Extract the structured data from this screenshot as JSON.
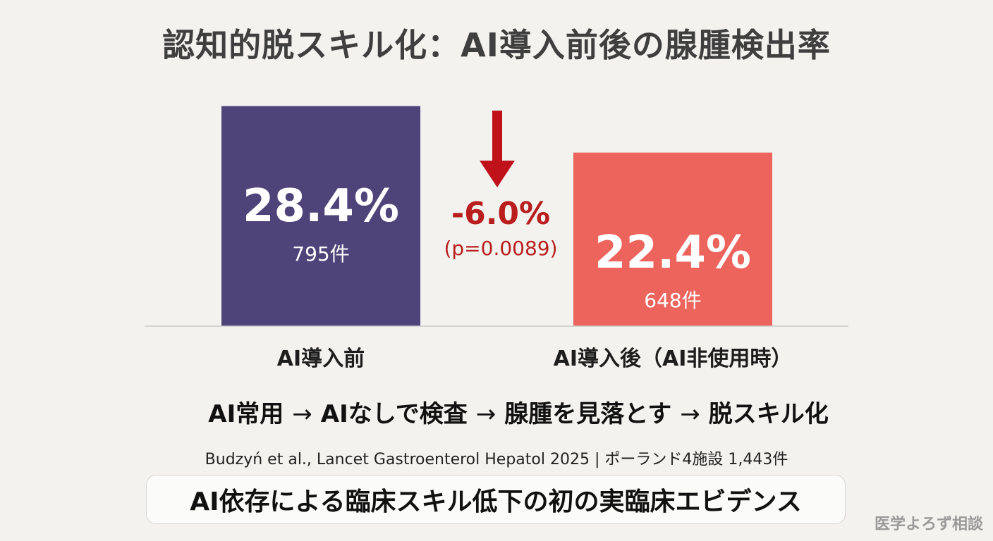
{
  "title": "認知的脱スキル化：AI導入前後の腺腫検出率",
  "chart_data": {
    "type": "bar",
    "categories": [
      "AI導入前",
      "AI導入後（AI非使用時）"
    ],
    "values": [
      28.4,
      22.4
    ],
    "value_labels": [
      "28.4%",
      "22.4%"
    ],
    "counts": [
      "795件",
      "648件"
    ],
    "colors": [
      "#4e4479",
      "#ec645c"
    ],
    "ylim": [
      0,
      30
    ],
    "grid": false,
    "delta": {
      "value": "-6.0%",
      "p_value": "(p=0.0089)",
      "arrow_color": "#c0121b"
    }
  },
  "flow": {
    "steps": [
      "AI常用",
      "AIなしで検査",
      "腺腫を見落とす",
      "脱スキル化"
    ],
    "arrow": "→"
  },
  "citation": "Budzyń et al., Lancet Gastroenterol Hepatol 2025 | ポーランド4施設 1,443件",
  "callout": "AI依存による臨床スキル低下の初の実臨床エビデンス",
  "watermark": "医学よろず相談"
}
